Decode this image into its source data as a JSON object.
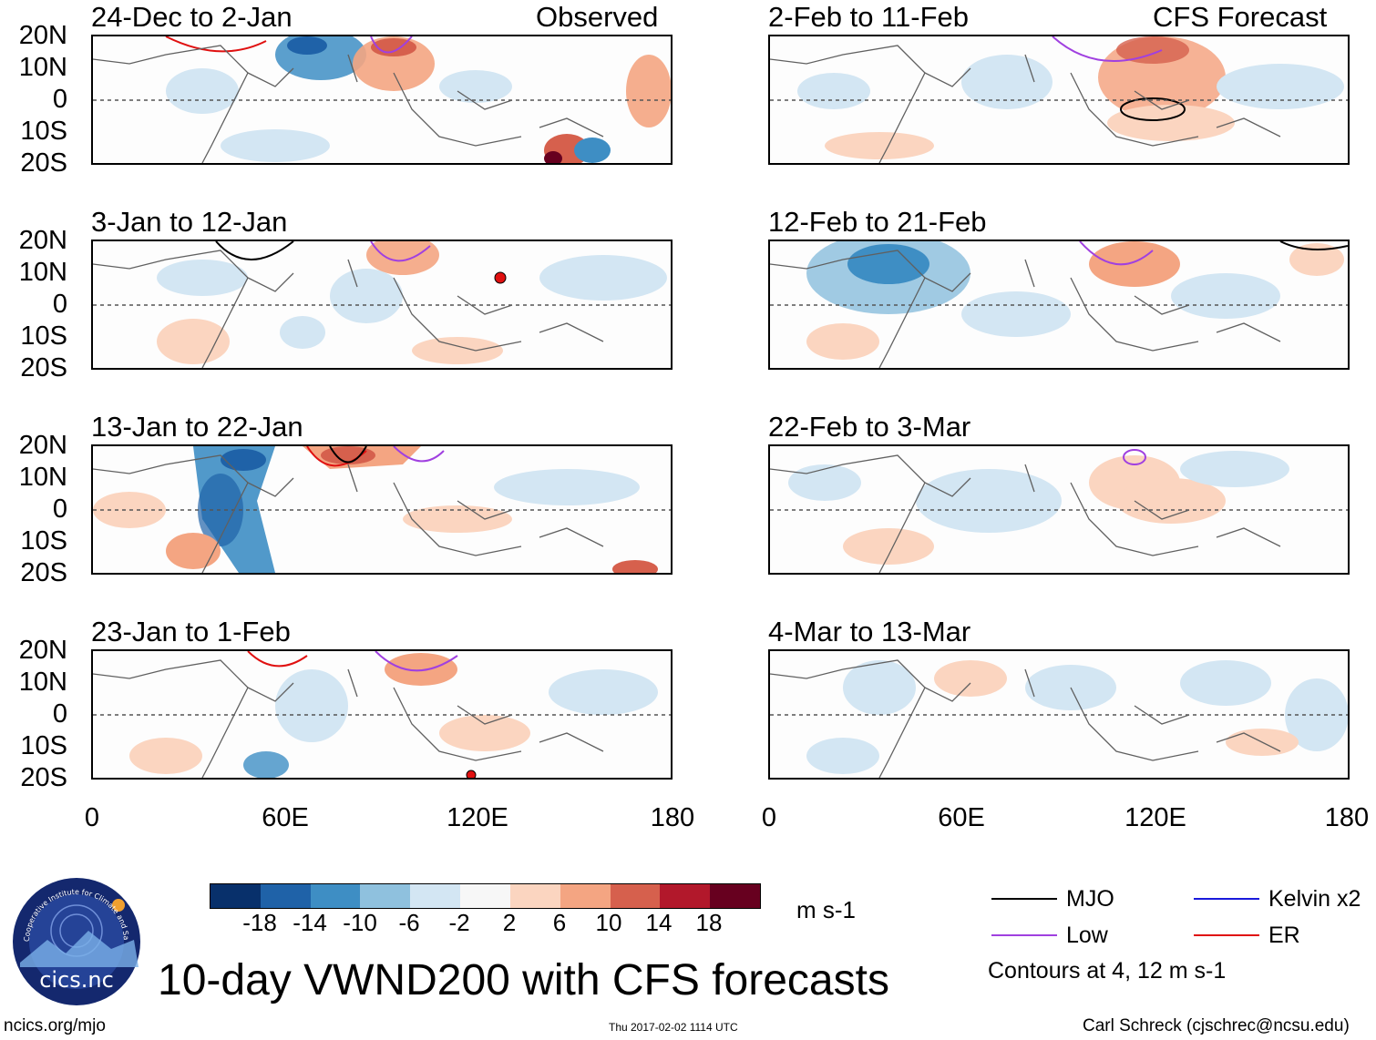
{
  "panels": [
    {
      "title": "24-Dec to 2-Jan",
      "tag": "Observed"
    },
    {
      "title": "3-Jan to 12-Jan",
      "tag": ""
    },
    {
      "title": "13-Jan to 22-Jan",
      "tag": ""
    },
    {
      "title": "23-Jan to 1-Feb",
      "tag": ""
    },
    {
      "title": "2-Feb to 11-Feb",
      "tag": "CFS Forecast"
    },
    {
      "title": "12-Feb to 21-Feb",
      "tag": ""
    },
    {
      "title": "22-Feb to 3-Mar",
      "tag": ""
    },
    {
      "title": "4-Mar to 13-Mar",
      "tag": ""
    }
  ],
  "lat_labels": [
    "20N",
    "10N",
    "0",
    "10S",
    "20S"
  ],
  "lon_labels": [
    "0",
    "60E",
    "120E",
    "180"
  ],
  "colorbar": {
    "colors": [
      "#08306b",
      "#1f62a8",
      "#3e8ec4",
      "#8fc1de",
      "#d3e6f3",
      "#f7f7f7",
      "#fbd5c0",
      "#f4a582",
      "#d6604d",
      "#b2182b",
      "#67001f"
    ],
    "labels": [
      "-18",
      "-14",
      "-10",
      "-6",
      "-2",
      "2",
      "6",
      "10",
      "14",
      "18"
    ],
    "units": "m s-1"
  },
  "legend": {
    "items": [
      {
        "label": "MJO",
        "color": "#000000"
      },
      {
        "label": "Kelvin x2",
        "color": "#1a1adb"
      },
      {
        "label": "Low",
        "color": "#a040e0"
      },
      {
        "label": "ER",
        "color": "#e01010"
      }
    ],
    "note": "Contours at 4, 12 m s-1"
  },
  "main_title": "10-day VWND200 with CFS forecasts",
  "logo_text": "cics.nc",
  "logo_ring_text": "Cooperative Institute for Climate and Satellites",
  "footer": {
    "left": "ncics.org/mjo",
    "center": "Thu 2017-02-02 1114 UTC",
    "right": "Carl Schreck (cjschrec@ncsu.edu)"
  }
}
